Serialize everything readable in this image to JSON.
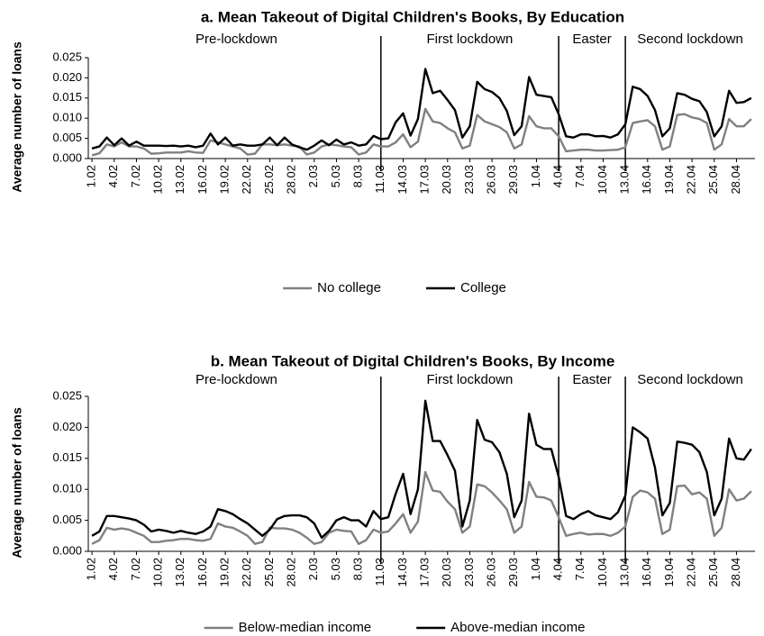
{
  "chart_data": [
    {
      "type": "line",
      "title": "a. Mean Takeout of Digital Children's Books, By Education",
      "ylabel": "Average number of loans",
      "categories": [
        "1.02",
        null,
        null,
        "4.02",
        null,
        null,
        "7.02",
        null,
        null,
        "10.02",
        null,
        null,
        "13.02",
        null,
        null,
        "16.02",
        null,
        null,
        "19.02",
        null,
        null,
        "22.02",
        null,
        null,
        "25.02",
        null,
        null,
        "28.02",
        null,
        null,
        "2.03",
        null,
        null,
        "5.03",
        null,
        null,
        "8.03",
        null,
        null,
        "11.03",
        null,
        null,
        "14.03",
        null,
        null,
        "17.03",
        null,
        null,
        "20.03",
        null,
        null,
        "23.03",
        null,
        null,
        "26.03",
        null,
        null,
        "29.03",
        null,
        null,
        "1.04",
        null,
        null,
        "4.04",
        null,
        null,
        "7.04",
        null,
        null,
        "10.04",
        null,
        null,
        "13.04",
        null,
        null,
        "16.04",
        null,
        null,
        "19.04",
        null,
        null,
        "22.04",
        null,
        null,
        "25.04",
        null,
        null,
        "28.04",
        null,
        null
      ],
      "series": [
        {
          "name": "No college",
          "color": "#808080",
          "values": [
            0.0008,
            0.0013,
            0.0035,
            0.003,
            0.004,
            0.003,
            0.003,
            0.0025,
            0.0012,
            0.0013,
            0.0015,
            0.0015,
            0.0015,
            0.0018,
            0.0015,
            0.0014,
            0.0045,
            0.004,
            0.0035,
            0.003,
            0.0025,
            0.001,
            0.0012,
            0.0035,
            0.0035,
            0.0033,
            0.0035,
            0.0032,
            0.003,
            0.001,
            0.0015,
            0.003,
            0.0035,
            0.0033,
            0.003,
            0.0028,
            0.001,
            0.0015,
            0.0035,
            0.003,
            0.003,
            0.004,
            0.006,
            0.0028,
            0.0042,
            0.0123,
            0.0092,
            0.0088,
            0.0075,
            0.0065,
            0.0025,
            0.0032,
            0.0108,
            0.0092,
            0.0085,
            0.0078,
            0.0065,
            0.0025,
            0.0035,
            0.0105,
            0.008,
            0.0075,
            0.0075,
            0.0055,
            0.0018,
            0.002,
            0.0022,
            0.0022,
            0.002,
            0.002,
            0.0021,
            0.0022,
            0.0028,
            0.0088,
            0.0092,
            0.0095,
            0.008,
            0.0022,
            0.003,
            0.0108,
            0.011,
            0.0102,
            0.0098,
            0.0088,
            0.0022,
            0.0035,
            0.0098,
            0.008,
            0.008,
            0.0098
          ]
        },
        {
          "name": "College",
          "color": "#000000",
          "values": [
            0.0025,
            0.003,
            0.0052,
            0.0033,
            0.005,
            0.0032,
            0.0042,
            0.0032,
            0.0032,
            0.0032,
            0.0031,
            0.0032,
            0.003,
            0.0032,
            0.0028,
            0.0032,
            0.0062,
            0.0035,
            0.0052,
            0.0032,
            0.0035,
            0.0032,
            0.0032,
            0.0035,
            0.0052,
            0.0033,
            0.0052,
            0.0035,
            0.0028,
            0.0022,
            0.0032,
            0.0045,
            0.0033,
            0.0047,
            0.0035,
            0.004,
            0.0032,
            0.0035,
            0.0056,
            0.0048,
            0.005,
            0.009,
            0.0112,
            0.0057,
            0.0098,
            0.0222,
            0.0162,
            0.0168,
            0.0145,
            0.012,
            0.0052,
            0.008,
            0.019,
            0.0172,
            0.0165,
            0.015,
            0.0118,
            0.0058,
            0.008,
            0.0202,
            0.0158,
            0.0155,
            0.0152,
            0.011,
            0.0055,
            0.0052,
            0.006,
            0.006,
            0.0055,
            0.0056,
            0.0052,
            0.006,
            0.0085,
            0.0178,
            0.0172,
            0.0155,
            0.012,
            0.0055,
            0.0075,
            0.0162,
            0.0158,
            0.0148,
            0.0142,
            0.0115,
            0.0055,
            0.008,
            0.0168,
            0.0138,
            0.014,
            0.015
          ]
        }
      ],
      "ylim": [
        0,
        0.025
      ],
      "yticks": [
        {
          "value": 0,
          "label": "0.000"
        },
        {
          "value": 0.005,
          "label": "0.005"
        },
        {
          "value": 0.01,
          "label": "0.010"
        },
        {
          "value": 0.015,
          "label": "0.015"
        },
        {
          "value": 0.02,
          "label": "0.020"
        },
        {
          "value": 0.025,
          "label": "0.025"
        }
      ],
      "grid": false,
      "periods": [
        {
          "label": "Pre-lockdown",
          "start": "1.02"
        },
        {
          "label": "First lockdown",
          "start": "11.03"
        },
        {
          "label": "Easter",
          "start": "4.04"
        },
        {
          "label": "Second lockdown",
          "start": "13.04"
        }
      ],
      "legend": "bottom"
    },
    {
      "type": "line",
      "title": "b. Mean Takeout of Digital Children's Books, By Income",
      "ylabel": "Average number of loans",
      "categories": [
        "1.02",
        null,
        null,
        "4.02",
        null,
        null,
        "7.02",
        null,
        null,
        "10.02",
        null,
        null,
        "13.02",
        null,
        null,
        "16.02",
        null,
        null,
        "19.02",
        null,
        null,
        "22.02",
        null,
        null,
        "25.02",
        null,
        null,
        "28.02",
        null,
        null,
        "2.03",
        null,
        null,
        "5.03",
        null,
        null,
        "8.03",
        null,
        null,
        "11.03",
        null,
        null,
        "14.03",
        null,
        null,
        "17.03",
        null,
        null,
        "20.03",
        null,
        null,
        "23.03",
        null,
        null,
        "26.03",
        null,
        null,
        "29.03",
        null,
        null,
        "1.04",
        null,
        null,
        "4.04",
        null,
        null,
        "7.04",
        null,
        null,
        "10.04",
        null,
        null,
        "13.04",
        null,
        null,
        "16.04",
        null,
        null,
        "19.04",
        null,
        null,
        "22.04",
        null,
        null,
        "25.04",
        null,
        null,
        "28.04",
        null,
        null
      ],
      "series": [
        {
          "name": "Below-median income",
          "color": "#808080",
          "values": [
            0.0012,
            0.0018,
            0.0038,
            0.0035,
            0.0037,
            0.0035,
            0.003,
            0.0025,
            0.0015,
            0.0015,
            0.0017,
            0.0018,
            0.002,
            0.002,
            0.0018,
            0.0017,
            0.002,
            0.0045,
            0.004,
            0.0038,
            0.0032,
            0.0025,
            0.0012,
            0.0015,
            0.0038,
            0.0037,
            0.0037,
            0.0035,
            0.003,
            0.0022,
            0.0012,
            0.0015,
            0.003,
            0.0035,
            0.0033,
            0.0032,
            0.0012,
            0.0018,
            0.0035,
            0.003,
            0.0032,
            0.0045,
            0.006,
            0.003,
            0.0048,
            0.0128,
            0.0098,
            0.0096,
            0.008,
            0.0068,
            0.003,
            0.004,
            0.0108,
            0.0105,
            0.0095,
            0.0082,
            0.0068,
            0.003,
            0.004,
            0.0112,
            0.0088,
            0.0087,
            0.0082,
            0.0055,
            0.0025,
            0.0028,
            0.003,
            0.0027,
            0.0028,
            0.0028,
            0.0025,
            0.003,
            0.004,
            0.0088,
            0.0098,
            0.0095,
            0.0085,
            0.0028,
            0.0035,
            0.0105,
            0.0106,
            0.0092,
            0.0095,
            0.0085,
            0.0025,
            0.0038,
            0.01,
            0.0082,
            0.0085,
            0.0097
          ]
        },
        {
          "name": "Above-median income",
          "color": "#000000",
          "values": [
            0.0025,
            0.0032,
            0.0057,
            0.0057,
            0.0055,
            0.0053,
            0.005,
            0.0043,
            0.0032,
            0.0035,
            0.0033,
            0.003,
            0.0033,
            0.003,
            0.0028,
            0.0032,
            0.004,
            0.0068,
            0.0065,
            0.006,
            0.0052,
            0.0045,
            0.0035,
            0.0025,
            0.0035,
            0.0052,
            0.0057,
            0.0058,
            0.0058,
            0.0055,
            0.0045,
            0.0022,
            0.0033,
            0.005,
            0.0055,
            0.005,
            0.005,
            0.004,
            0.0065,
            0.0052,
            0.0055,
            0.0093,
            0.0125,
            0.006,
            0.01,
            0.0243,
            0.0178,
            0.0178,
            0.0155,
            0.013,
            0.004,
            0.0082,
            0.0212,
            0.018,
            0.0176,
            0.016,
            0.0125,
            0.0055,
            0.0082,
            0.0222,
            0.0172,
            0.0165,
            0.0165,
            0.012,
            0.0057,
            0.0052,
            0.006,
            0.0065,
            0.0058,
            0.0055,
            0.0052,
            0.0063,
            0.009,
            0.02,
            0.0192,
            0.0182,
            0.0135,
            0.0058,
            0.0078,
            0.0177,
            0.0175,
            0.0172,
            0.016,
            0.0128,
            0.0058,
            0.0085,
            0.0182,
            0.015,
            0.0148,
            0.0165
          ]
        }
      ],
      "ylim": [
        0,
        0.025
      ],
      "yticks": [
        {
          "value": 0,
          "label": "0.000"
        },
        {
          "value": 0.005,
          "label": "0.005"
        },
        {
          "value": 0.01,
          "label": "0.010"
        },
        {
          "value": 0.015,
          "label": "0.015"
        },
        {
          "value": 0.02,
          "label": "0.020"
        },
        {
          "value": 0.025,
          "label": "0.025"
        }
      ],
      "grid": false,
      "periods": [
        {
          "label": "Pre-lockdown",
          "start": "1.02"
        },
        {
          "label": "First lockdown",
          "start": "11.03"
        },
        {
          "label": "Easter",
          "start": "4.04"
        },
        {
          "label": "Second lockdown",
          "start": "13.04"
        }
      ],
      "legend": "bottom"
    }
  ]
}
